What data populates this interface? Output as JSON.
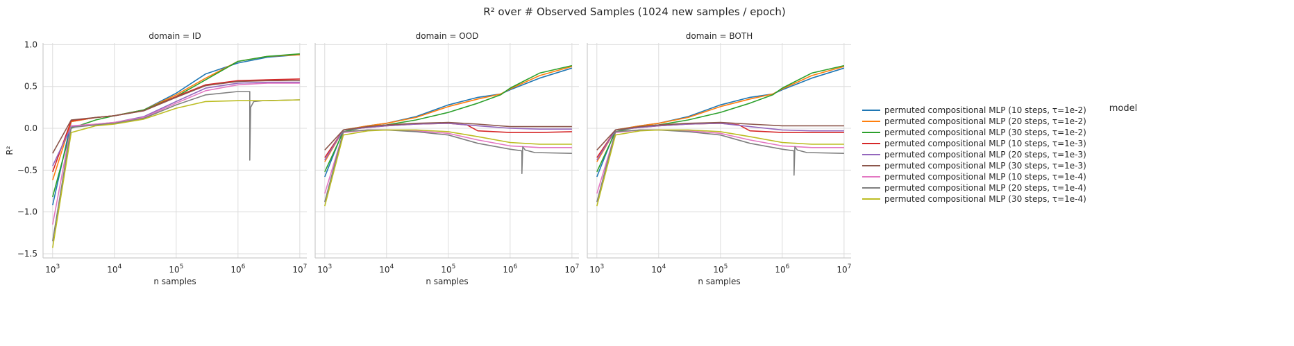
{
  "figure": {
    "title": "R² over # Observed Samples (1024 new samples / epoch)"
  },
  "legend": {
    "title": "model"
  },
  "chart_data": {
    "type": "line",
    "title": "R² over # Observed Samples (1024 new samples / epoch)",
    "xlabel": "n samples",
    "ylabel": "R²",
    "xscale": "log",
    "xlim": [
      700,
      13000000
    ],
    "ylim": [
      -1.55,
      1.02
    ],
    "xticks": [
      1000,
      10000,
      100000,
      1000000,
      10000000
    ],
    "xtick_labels": [
      [
        "10",
        "3"
      ],
      [
        "10",
        "4"
      ],
      [
        "10",
        "5"
      ],
      [
        "10",
        "6"
      ],
      [
        "10",
        "7"
      ]
    ],
    "yticks": [
      -1.5,
      -1.0,
      -0.5,
      0.0,
      0.5,
      1.0
    ],
    "ytick_labels": [
      "−1.5",
      "−1.0",
      "−0.5",
      "0.0",
      "0.5",
      "1.0"
    ],
    "grid": true,
    "legend_position": "right",
    "series": [
      {
        "name": "permuted compositional MLP (10 steps, τ=1e-2)",
        "color": "#1f77b4"
      },
      {
        "name": "permuted compositional MLP (20 steps, τ=1e-2)",
        "color": "#ff7f0e"
      },
      {
        "name": "permuted compositional MLP (30 steps, τ=1e-2)",
        "color": "#2ca02c"
      },
      {
        "name": "permuted compositional MLP (10 steps, τ=1e-3)",
        "color": "#d62728"
      },
      {
        "name": "permuted compositional MLP (20 steps, τ=1e-3)",
        "color": "#9467bd"
      },
      {
        "name": "permuted compositional MLP (30 steps, τ=1e-3)",
        "color": "#8c564b"
      },
      {
        "name": "permuted compositional MLP (10 steps, τ=1e-4)",
        "color": "#e377c2"
      },
      {
        "name": "permuted compositional MLP (20 steps, τ=1e-4)",
        "color": "#7f7f7f"
      },
      {
        "name": "permuted compositional MLP (30 steps, τ=1e-4)",
        "color": "#bcbd22"
      }
    ],
    "panels": [
      {
        "title": "domain = ID",
        "series": [
          {
            "x": [
              1000,
              2000,
              5000,
              10000,
              30000,
              100000,
              300000,
              1000000,
              3000000,
              10000000
            ],
            "y": [
              -0.92,
              0.08,
              0.13,
              0.15,
              0.22,
              0.42,
              0.65,
              0.78,
              0.85,
              0.88
            ]
          },
          {
            "x": [
              1000,
              2000,
              5000,
              10000,
              30000,
              100000,
              300000,
              1000000,
              3000000,
              10000000
            ],
            "y": [
              -0.62,
              0.08,
              0.13,
              0.15,
              0.22,
              0.4,
              0.6,
              0.8,
              0.86,
              0.88
            ]
          },
          {
            "x": [
              1000,
              2000,
              5000,
              10000,
              30000,
              100000,
              300000,
              1000000,
              3000000,
              10000000
            ],
            "y": [
              -0.82,
              0.0,
              0.1,
              0.15,
              0.22,
              0.38,
              0.58,
              0.8,
              0.86,
              0.89
            ]
          },
          {
            "x": [
              1000,
              2000,
              5000,
              10000,
              30000,
              100000,
              300000,
              1000000,
              3000000,
              10000000
            ],
            "y": [
              -0.52,
              0.09,
              0.13,
              0.15,
              0.21,
              0.38,
              0.52,
              0.57,
              0.58,
              0.59
            ]
          },
          {
            "x": [
              1000,
              2000,
              5000,
              10000,
              30000,
              100000,
              300000,
              1000000,
              3000000,
              10000000
            ],
            "y": [
              -0.45,
              0.02,
              0.05,
              0.07,
              0.14,
              0.32,
              0.48,
              0.54,
              0.55,
              0.55
            ]
          },
          {
            "x": [
              1000,
              2000,
              5000,
              10000,
              30000,
              100000,
              300000,
              1000000,
              3000000,
              10000000
            ],
            "y": [
              -0.3,
              0.1,
              0.13,
              0.15,
              0.21,
              0.37,
              0.51,
              0.56,
              0.57,
              0.57
            ]
          },
          {
            "x": [
              1000,
              2000,
              5000,
              10000,
              30000,
              100000,
              300000,
              1000000,
              3000000,
              10000000
            ],
            "y": [
              -1.15,
              0.03,
              0.05,
              0.07,
              0.13,
              0.3,
              0.45,
              0.52,
              0.54,
              0.54
            ]
          },
          {
            "x": [
              1000,
              2000,
              5000,
              10000,
              30000,
              100000,
              300000,
              1000000,
              1550000,
              1550000,
              1600000,
              1800000,
              2500000,
              10000000
            ],
            "y": [
              -1.35,
              0.01,
              0.04,
              0.06,
              0.12,
              0.28,
              0.4,
              0.44,
              0.44,
              -0.38,
              0.25,
              0.32,
              0.33,
              0.34
            ]
          },
          {
            "x": [
              1000,
              2000,
              5000,
              10000,
              30000,
              100000,
              300000,
              1000000,
              3000000,
              10000000
            ],
            "y": [
              -1.43,
              -0.05,
              0.03,
              0.05,
              0.11,
              0.24,
              0.32,
              0.33,
              0.33,
              0.34
            ]
          }
        ]
      },
      {
        "title": "domain = OOD",
        "series": [
          {
            "x": [
              1000,
              2000,
              5000,
              10000,
              30000,
              100000,
              300000,
              700000,
              1000000,
              3000000,
              10000000
            ],
            "y": [
              -0.58,
              -0.02,
              0.03,
              0.06,
              0.14,
              0.28,
              0.37,
              0.41,
              0.46,
              0.6,
              0.72
            ]
          },
          {
            "x": [
              1000,
              2000,
              5000,
              10000,
              30000,
              100000,
              300000,
              700000,
              1000000,
              3000000,
              10000000
            ],
            "y": [
              -0.4,
              -0.02,
              0.03,
              0.06,
              0.13,
              0.26,
              0.35,
              0.41,
              0.47,
              0.63,
              0.74
            ]
          },
          {
            "x": [
              1000,
              2000,
              5000,
              10000,
              30000,
              100000,
              300000,
              700000,
              1000000,
              3000000,
              10000000
            ],
            "y": [
              -0.52,
              -0.04,
              0.02,
              0.04,
              0.1,
              0.19,
              0.3,
              0.4,
              0.48,
              0.66,
              0.75
            ]
          },
          {
            "x": [
              1000,
              2000,
              5000,
              10000,
              30000,
              100000,
              200000,
              300000,
              1000000,
              3000000,
              10000000
            ],
            "y": [
              -0.35,
              -0.02,
              0.01,
              0.03,
              0.05,
              0.06,
              0.04,
              -0.03,
              -0.05,
              -0.05,
              -0.04
            ]
          },
          {
            "x": [
              1000,
              2000,
              5000,
              10000,
              30000,
              100000,
              300000,
              1000000,
              3000000,
              10000000
            ],
            "y": [
              -0.38,
              -0.02,
              0.01,
              0.03,
              0.05,
              0.06,
              0.03,
              0.0,
              -0.01,
              -0.01
            ]
          },
          {
            "x": [
              1000,
              2000,
              5000,
              10000,
              30000,
              100000,
              300000,
              1000000,
              3000000,
              10000000
            ],
            "y": [
              -0.26,
              -0.02,
              0.02,
              0.04,
              0.06,
              0.07,
              0.05,
              0.02,
              0.02,
              0.02
            ]
          },
          {
            "x": [
              1000,
              2000,
              5000,
              10000,
              30000,
              100000,
              300000,
              1000000,
              3000000,
              10000000
            ],
            "y": [
              -0.78,
              -0.05,
              -0.02,
              -0.02,
              -0.03,
              -0.06,
              -0.14,
              -0.21,
              -0.23,
              -0.23
            ]
          },
          {
            "x": [
              1000,
              2000,
              5000,
              10000,
              30000,
              100000,
              300000,
              1000000,
              1550000,
              1550000,
              1600000,
              1750000,
              2500000,
              10000000
            ],
            "y": [
              -0.88,
              -0.04,
              -0.02,
              -0.02,
              -0.04,
              -0.08,
              -0.18,
              -0.25,
              -0.27,
              -0.54,
              -0.22,
              -0.26,
              -0.29,
              -0.3
            ]
          },
          {
            "x": [
              1000,
              2000,
              5000,
              10000,
              30000,
              100000,
              300000,
              1000000,
              3000000,
              10000000
            ],
            "y": [
              -0.93,
              -0.08,
              -0.03,
              -0.02,
              -0.02,
              -0.04,
              -0.1,
              -0.17,
              -0.19,
              -0.19
            ]
          }
        ]
      },
      {
        "title": "domain = BOTH",
        "series": [
          {
            "x": [
              1000,
              2000,
              5000,
              10000,
              30000,
              100000,
              300000,
              700000,
              1000000,
              3000000,
              10000000
            ],
            "y": [
              -0.58,
              -0.02,
              0.03,
              0.06,
              0.14,
              0.28,
              0.37,
              0.41,
              0.46,
              0.6,
              0.72
            ]
          },
          {
            "x": [
              1000,
              2000,
              5000,
              10000,
              30000,
              100000,
              300000,
              700000,
              1000000,
              3000000,
              10000000
            ],
            "y": [
              -0.4,
              -0.02,
              0.03,
              0.06,
              0.13,
              0.26,
              0.35,
              0.41,
              0.47,
              0.63,
              0.74
            ]
          },
          {
            "x": [
              1000,
              2000,
              5000,
              10000,
              30000,
              100000,
              300000,
              700000,
              1000000,
              3000000,
              10000000
            ],
            "y": [
              -0.52,
              -0.04,
              0.02,
              0.04,
              0.1,
              0.19,
              0.3,
              0.4,
              0.48,
              0.66,
              0.75
            ]
          },
          {
            "x": [
              1000,
              2000,
              5000,
              10000,
              30000,
              100000,
              200000,
              300000,
              1000000,
              3000000,
              10000000
            ],
            "y": [
              -0.35,
              -0.02,
              0.01,
              0.03,
              0.05,
              0.06,
              0.04,
              -0.03,
              -0.05,
              -0.05,
              -0.05
            ]
          },
          {
            "x": [
              1000,
              2000,
              5000,
              10000,
              30000,
              100000,
              300000,
              1000000,
              3000000,
              10000000
            ],
            "y": [
              -0.38,
              -0.02,
              0.01,
              0.03,
              0.05,
              0.06,
              0.02,
              -0.02,
              -0.03,
              -0.03
            ]
          },
          {
            "x": [
              1000,
              2000,
              5000,
              10000,
              30000,
              100000,
              300000,
              1000000,
              3000000,
              10000000
            ],
            "y": [
              -0.26,
              -0.02,
              0.02,
              0.04,
              0.06,
              0.07,
              0.05,
              0.03,
              0.03,
              0.03
            ]
          },
          {
            "x": [
              1000,
              2000,
              5000,
              10000,
              30000,
              100000,
              300000,
              1000000,
              3000000,
              10000000
            ],
            "y": [
              -0.78,
              -0.05,
              -0.02,
              -0.02,
              -0.03,
              -0.06,
              -0.14,
              -0.21,
              -0.23,
              -0.23
            ]
          },
          {
            "x": [
              1000,
              2000,
              5000,
              10000,
              30000,
              100000,
              300000,
              1000000,
              1550000,
              1550000,
              1600000,
              1750000,
              2500000,
              10000000
            ],
            "y": [
              -0.88,
              -0.04,
              -0.02,
              -0.02,
              -0.04,
              -0.08,
              -0.18,
              -0.25,
              -0.27,
              -0.56,
              -0.22,
              -0.26,
              -0.29,
              -0.3
            ]
          },
          {
            "x": [
              1000,
              2000,
              5000,
              10000,
              30000,
              100000,
              300000,
              1000000,
              3000000,
              10000000
            ],
            "y": [
              -0.93,
              -0.08,
              -0.03,
              -0.02,
              -0.02,
              -0.04,
              -0.1,
              -0.17,
              -0.19,
              -0.19
            ]
          }
        ]
      }
    ]
  }
}
